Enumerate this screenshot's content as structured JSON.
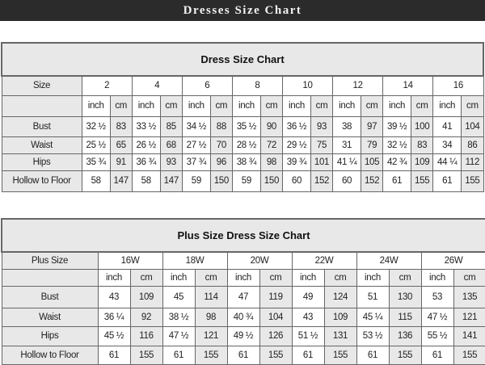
{
  "banner": "Dresses Size Chart",
  "tables": [
    {
      "title": "Dress Size Chart",
      "size_label": "Size",
      "sizes": [
        "2",
        "4",
        "6",
        "8",
        "10",
        "12",
        "14",
        "16"
      ],
      "unit_labels": [
        "inch",
        "cm"
      ],
      "rows": [
        {
          "label": "Bust",
          "values": [
            "32 ½",
            "83",
            "33 ½",
            "85",
            "34 ½",
            "88",
            "35 ½",
            "90",
            "36 ½",
            "93",
            "38",
            "97",
            "39 ½",
            "100",
            "41",
            "104"
          ]
        },
        {
          "label": "Waist",
          "values": [
            "25 ½",
            "65",
            "26 ½",
            "68",
            "27 ½",
            "70",
            "28 ½",
            "72",
            "29 ½",
            "75",
            "31",
            "79",
            "32 ½",
            "83",
            "34",
            "86"
          ]
        },
        {
          "label": "Hips",
          "values": [
            "35 ¾",
            "91",
            "36 ¾",
            "93",
            "37 ¾",
            "96",
            "38 ¾",
            "98",
            "39 ¾",
            "101",
            "41 ¼",
            "105",
            "42 ¾",
            "109",
            "44 ¼",
            "112"
          ]
        },
        {
          "label": "Hollow to Floor",
          "values": [
            "58",
            "147",
            "58",
            "147",
            "59",
            "150",
            "59",
            "150",
            "60",
            "152",
            "60",
            "152",
            "61",
            "155",
            "61",
            "155"
          ]
        }
      ]
    },
    {
      "title": "Plus Size Dress Size Chart",
      "size_label": "Plus Size",
      "sizes": [
        "16W",
        "18W",
        "20W",
        "22W",
        "24W",
        "26W"
      ],
      "unit_labels": [
        "inch",
        "cm"
      ],
      "rows": [
        {
          "label": "Bust",
          "values": [
            "43",
            "109",
            "45",
            "114",
            "47",
            "119",
            "49",
            "124",
            "51",
            "130",
            "53",
            "135"
          ]
        },
        {
          "label": "Waist",
          "values": [
            "36 ¼",
            "92",
            "38 ½",
            "98",
            "40 ¾",
            "104",
            "43",
            "109",
            "45 ¼",
            "115",
            "47 ½",
            "121"
          ]
        },
        {
          "label": "Hips",
          "values": [
            "45 ½",
            "116",
            "47 ½",
            "121",
            "49 ½",
            "126",
            "51 ½",
            "131",
            "53 ½",
            "136",
            "55 ½",
            "141"
          ]
        },
        {
          "label": "Hollow to Floor",
          "values": [
            "61",
            "155",
            "61",
            "155",
            "61",
            "155",
            "61",
            "155",
            "61",
            "155",
            "61",
            "155"
          ]
        }
      ]
    }
  ]
}
